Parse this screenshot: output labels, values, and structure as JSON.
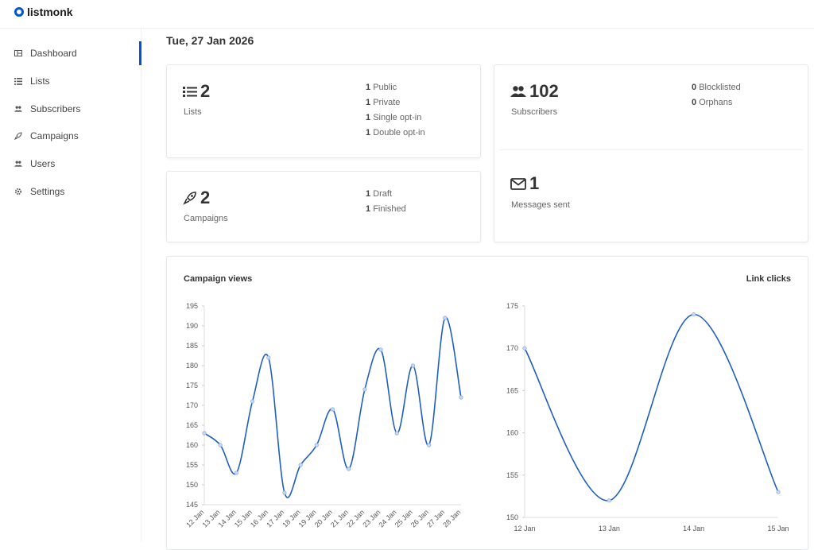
{
  "app": {
    "name": "listmonk"
  },
  "sidebar": {
    "items": [
      {
        "label": "Dashboard",
        "icon": "dashboard-icon",
        "active": true
      },
      {
        "label": "Lists",
        "icon": "list-icon"
      },
      {
        "label": "Subscribers",
        "icon": "users-icon"
      },
      {
        "label": "Campaigns",
        "icon": "rocket-icon"
      },
      {
        "label": "Users",
        "icon": "users-icon"
      },
      {
        "label": "Settings",
        "icon": "gear-icon"
      }
    ]
  },
  "dashboard": {
    "date": "Tue, 27 Jan 2026",
    "lists": {
      "count": "2",
      "label": "Lists",
      "breakdown": [
        {
          "n": "1",
          "t": "Public"
        },
        {
          "n": "1",
          "t": "Private"
        },
        {
          "n": "1",
          "t": "Single opt-in"
        },
        {
          "n": "1",
          "t": "Double opt-in"
        }
      ]
    },
    "campaigns": {
      "count": "2",
      "label": "Campaigns",
      "breakdown": [
        {
          "n": "1",
          "t": "Draft"
        },
        {
          "n": "1",
          "t": "Finished"
        }
      ]
    },
    "subscribers": {
      "count": "102",
      "label": "Subscribers",
      "breakdown": [
        {
          "n": "0",
          "t": "Blocklisted"
        },
        {
          "n": "0",
          "t": "Orphans"
        }
      ]
    },
    "messages": {
      "count": "1",
      "label": "Messages sent"
    }
  },
  "colors": {
    "accent": "#0055d4",
    "line": "#1f5fbf"
  },
  "chart_data": [
    {
      "type": "line",
      "title": "Campaign views",
      "categories": [
        "12 Jan",
        "13 Jan",
        "14 Jan",
        "15 Jan",
        "16 Jan",
        "17 Jan",
        "18 Jan",
        "19 Jan",
        "20 Jan",
        "21 Jan",
        "22 Jan",
        "23 Jan",
        "24 Jan",
        "25 Jan",
        "26 Jan",
        "27 Jan",
        "28 Jan"
      ],
      "values": [
        163,
        160,
        153,
        171,
        182,
        148,
        155,
        160,
        169,
        154,
        174,
        184,
        163,
        180,
        160,
        192,
        172
      ],
      "ylim": [
        145,
        195
      ],
      "yticks": [
        145,
        150,
        155,
        160,
        165,
        170,
        175,
        180,
        185,
        190,
        195
      ]
    },
    {
      "type": "line",
      "title": "Link clicks",
      "categories": [
        "12 Jan",
        "13 Jan",
        "14 Jan",
        "15 Jan"
      ],
      "values": [
        170,
        152,
        174,
        153
      ],
      "ylim": [
        150,
        175
      ],
      "yticks": [
        150,
        155,
        160,
        165,
        170,
        175
      ]
    }
  ]
}
